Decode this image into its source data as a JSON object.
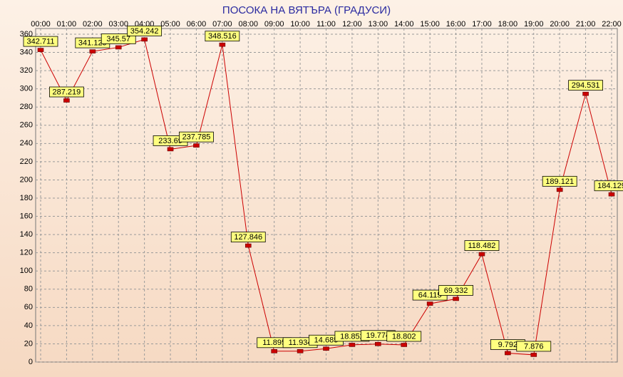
{
  "chart_data": {
    "type": "line",
    "title": "ПОСОКА НА ВЯТЪРА    (ГРАДУСИ)",
    "categories": [
      "00:00",
      "01:00",
      "02:00",
      "03:00",
      "04:00",
      "05:00",
      "06:00",
      "07:00",
      "08:00",
      "09:00",
      "10:00",
      "11:00",
      "12:00",
      "13:00",
      "14:00",
      "15:00",
      "16:00",
      "17:00",
      "18:00",
      "19:00",
      "20:00",
      "21:00",
      "22:00"
    ],
    "series": [
      {
        "color": "#cc0000",
        "values": [
          342.711,
          287.219,
          341.129,
          345.57,
          354.242,
          233.69,
          237.785,
          348.516,
          127.846,
          11.895,
          11.934,
          14.685,
          18.852,
          19.774,
          18.802,
          64.115,
          69.332,
          118.482,
          9.792,
          7.876,
          189.121,
          294.531,
          184.129
        ]
      }
    ],
    "ylim": [
      0,
      360
    ],
    "yticks": [
      0,
      20,
      40,
      60,
      80,
      100,
      120,
      140,
      160,
      180,
      200,
      220,
      240,
      260,
      280,
      300,
      320,
      340,
      360
    ],
    "grid": true
  }
}
